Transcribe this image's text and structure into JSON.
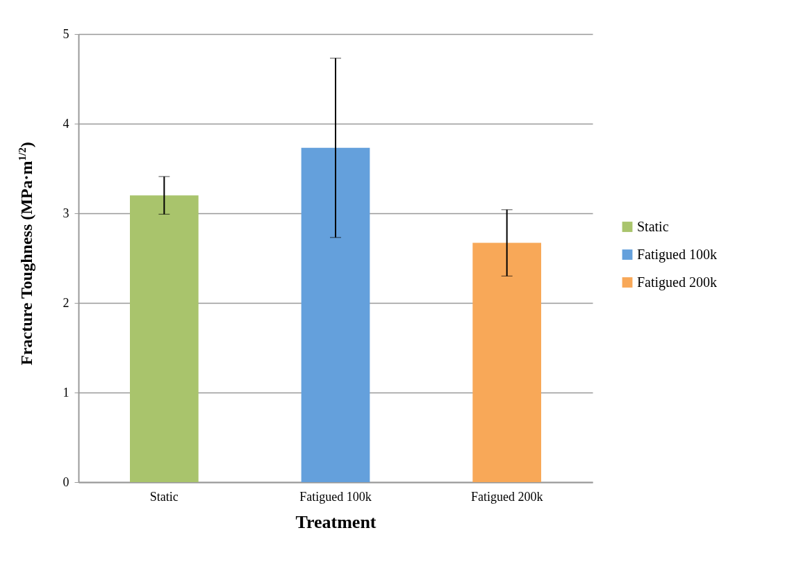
{
  "chart_data": {
    "type": "bar",
    "xlabel": "Treatment",
    "ylabel": "Fracture Toughness (MPa·m$^{1/2}$)",
    "categories": [
      "Static",
      "Fatigued 100k",
      "Fatigued 200k"
    ],
    "series": [
      {
        "name": "Static",
        "color": "#a9c46c",
        "values": [
          3.2,
          null,
          null
        ],
        "errors": [
          0.21,
          null,
          null
        ]
      },
      {
        "name": "Fatigued 100k",
        "color": "#64a0dc",
        "values": [
          null,
          3.73,
          null
        ],
        "errors": [
          null,
          1.0,
          null
        ]
      },
      {
        "name": "Fatigued 200k",
        "color": "#f8a858",
        "values": [
          null,
          null,
          2.67
        ],
        "errors": [
          null,
          null,
          0.37
        ]
      }
    ],
    "ylim": [
      0,
      5
    ],
    "yticks": [
      0,
      1,
      2,
      3,
      4,
      5
    ],
    "grid": "y",
    "legend": "right"
  }
}
